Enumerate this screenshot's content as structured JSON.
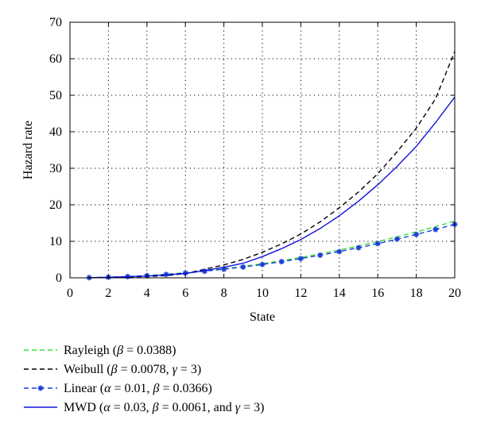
{
  "chart_data": {
    "type": "line",
    "title": "",
    "xlabel": "State",
    "ylabel": "Hazard rate",
    "xlim": [
      0,
      20
    ],
    "ylim": [
      0,
      70
    ],
    "xticks": [
      "0",
      "2",
      "4",
      "6",
      "8",
      "10",
      "12",
      "14",
      "16",
      "18",
      "20"
    ],
    "yticks": [
      "0",
      "10",
      "20",
      "30",
      "40",
      "50",
      "60",
      "70"
    ],
    "grid": true,
    "legend_position": "below-left",
    "x": [
      1,
      2,
      3,
      4,
      5,
      6,
      7,
      8,
      9,
      10,
      11,
      12,
      13,
      14,
      15,
      16,
      17,
      18,
      19,
      20
    ],
    "series": [
      {
        "name_parts": [
          "Rayleigh (",
          "β",
          " = 0.0388)"
        ],
        "color": "#33dd33",
        "style": "dashed",
        "marker": "none",
        "values": [
          0.04,
          0.16,
          0.35,
          0.62,
          0.97,
          1.4,
          1.9,
          2.48,
          3.14,
          3.88,
          4.69,
          5.59,
          6.56,
          7.6,
          8.73,
          9.93,
          11.21,
          12.57,
          14.01,
          15.52
        ]
      },
      {
        "name_parts": [
          "Weibull (",
          "β",
          " = 0.0078, ",
          "γ",
          " = 3)"
        ],
        "color": "#000000",
        "style": "dashed",
        "marker": "none",
        "values": [
          0.02,
          0.09,
          0.21,
          0.37,
          0.59,
          1.18,
          2.35,
          3.55,
          5.05,
          7.0,
          9.3,
          12.0,
          15.3,
          19.2,
          23.5,
          28.5,
          34.5,
          41.0,
          49.0,
          62.0
        ]
      },
      {
        "name_parts": [
          "Linear (",
          "α",
          " = 0.01, ",
          "β",
          " = 0.0366)"
        ],
        "color": "#1a3fd6",
        "style": "dashed",
        "marker": "star",
        "values": [
          0.05,
          0.16,
          0.34,
          0.59,
          0.92,
          1.32,
          1.8,
          2.35,
          2.97,
          3.66,
          4.43,
          5.27,
          6.19,
          7.17,
          8.24,
          9.38,
          10.59,
          11.87,
          13.23,
          14.66
        ]
      },
      {
        "name_parts": [
          "MWD (",
          "α",
          " = 0.03, ",
          "β",
          " = 0.0061, and ",
          "γ",
          " = 3)"
        ],
        "color": "#1111dd",
        "style": "solid",
        "marker": "none",
        "values": [
          0.05,
          0.15,
          0.3,
          0.5,
          0.8,
          1.2,
          2.0,
          2.9,
          4.0,
          5.8,
          8.0,
          10.5,
          13.5,
          17.0,
          21.0,
          25.5,
          30.5,
          36.0,
          42.5,
          49.5
        ]
      }
    ]
  }
}
